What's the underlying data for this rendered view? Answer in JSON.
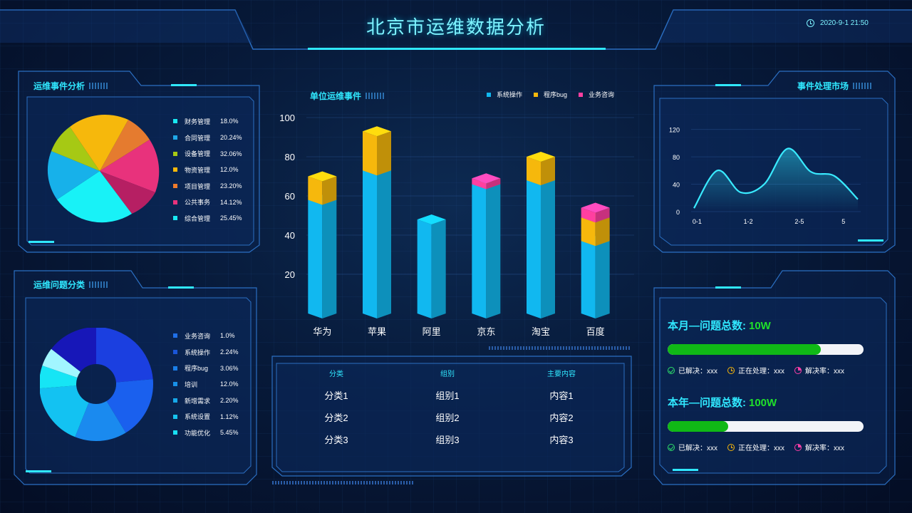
{
  "header": {
    "title": "北京市运维数据分析",
    "datetime": "2020-9-1 21:50"
  },
  "colors": {
    "accent": "#30e8ff",
    "frame": "#2b6fc2",
    "green": "#10b816"
  },
  "events_panel": {
    "title": "运维事件分析",
    "items": [
      {
        "label": "财务管理",
        "value": "18.0%",
        "color": "#e57b2f"
      },
      {
        "label": "合同管理",
        "value": "20.24%",
        "color": "#1fa8e8"
      },
      {
        "label": "设备管理",
        "value": "32.06%",
        "color": "#a6c914"
      },
      {
        "label": "物资管理",
        "value": "12.0%",
        "color": "#f6b80c"
      },
      {
        "label": "项目管理",
        "value": "23.20%",
        "color": "#ef7b2c"
      },
      {
        "label": "公共事务",
        "value": "14.12%",
        "color": "#e8327c"
      },
      {
        "label": "综合管理",
        "value": "25.45%",
        "color": "#18e8f2"
      }
    ]
  },
  "issues_panel": {
    "title": "运维问题分类",
    "items": [
      {
        "label": "业务咨询",
        "value": "1.0%",
        "color": "#1f6fe8"
      },
      {
        "label": "系统操作",
        "value": "2.24%",
        "color": "#1a55d8"
      },
      {
        "label": "程序bug",
        "value": "3.06%",
        "color": "#1a7ee8"
      },
      {
        "label": "培训",
        "value": "12.0%",
        "color": "#1890e8"
      },
      {
        "label": "新增需求",
        "value": "2.20%",
        "color": "#16a8ea"
      },
      {
        "label": "系统设置",
        "value": "1.12%",
        "color": "#16c2ee"
      },
      {
        "label": "功能优化",
        "value": "5.45%",
        "color": "#18e0f4"
      }
    ]
  },
  "chart_data": [
    {
      "type": "bar",
      "title": "单位运维事件",
      "categories": [
        "华为",
        "苹果",
        "阿里",
        "京东",
        "淘宝",
        "百度"
      ],
      "series": [
        {
          "name": "系统操作",
          "color": "#11b8f0",
          "values": [
            58,
            73,
            48,
            66,
            68,
            37
          ]
        },
        {
          "name": "程序bug",
          "color": "#f6b80c",
          "values": [
            12,
            20,
            0,
            0,
            12,
            12
          ]
        },
        {
          "name": "业务咨询",
          "color": "#ff3fa0",
          "values": [
            0,
            0,
            0,
            3,
            0,
            5
          ]
        }
      ],
      "yticks": [
        20,
        40,
        60,
        80,
        100
      ],
      "ylim": [
        0,
        100
      ]
    },
    {
      "type": "line",
      "title": "事件处理市场",
      "x_ticks": [
        "0-1",
        "1-2",
        "2-5",
        "5"
      ],
      "yticks": [
        0,
        40,
        80,
        120
      ],
      "ylim": [
        0,
        130
      ],
      "x": [
        0,
        0.5,
        1,
        1.5,
        2,
        2.5,
        3,
        3.5
      ],
      "y": [
        5,
        60,
        28,
        40,
        92,
        58,
        52,
        18
      ]
    }
  ],
  "table": {
    "headers": [
      "分类",
      "组别",
      "主要内容"
    ],
    "rows": [
      [
        "分类1",
        "组别1",
        "内容1"
      ],
      [
        "分类2",
        "组别2",
        "内容2"
      ],
      [
        "分类3",
        "组别3",
        "内容3"
      ]
    ]
  },
  "stats": {
    "month": {
      "title": "本月—问题总数:",
      "total": "10W",
      "progress": 0.78,
      "resolved": "已解决：xxx",
      "processing": "正在处理：xxx",
      "rate": "解决率：xxx"
    },
    "year": {
      "title": "本年—问题总数:",
      "total": "100W",
      "progress": 0.31,
      "resolved": "已解决：xxx",
      "processing": "正在处理：xxx",
      "rate": "解决率：xxx"
    }
  }
}
